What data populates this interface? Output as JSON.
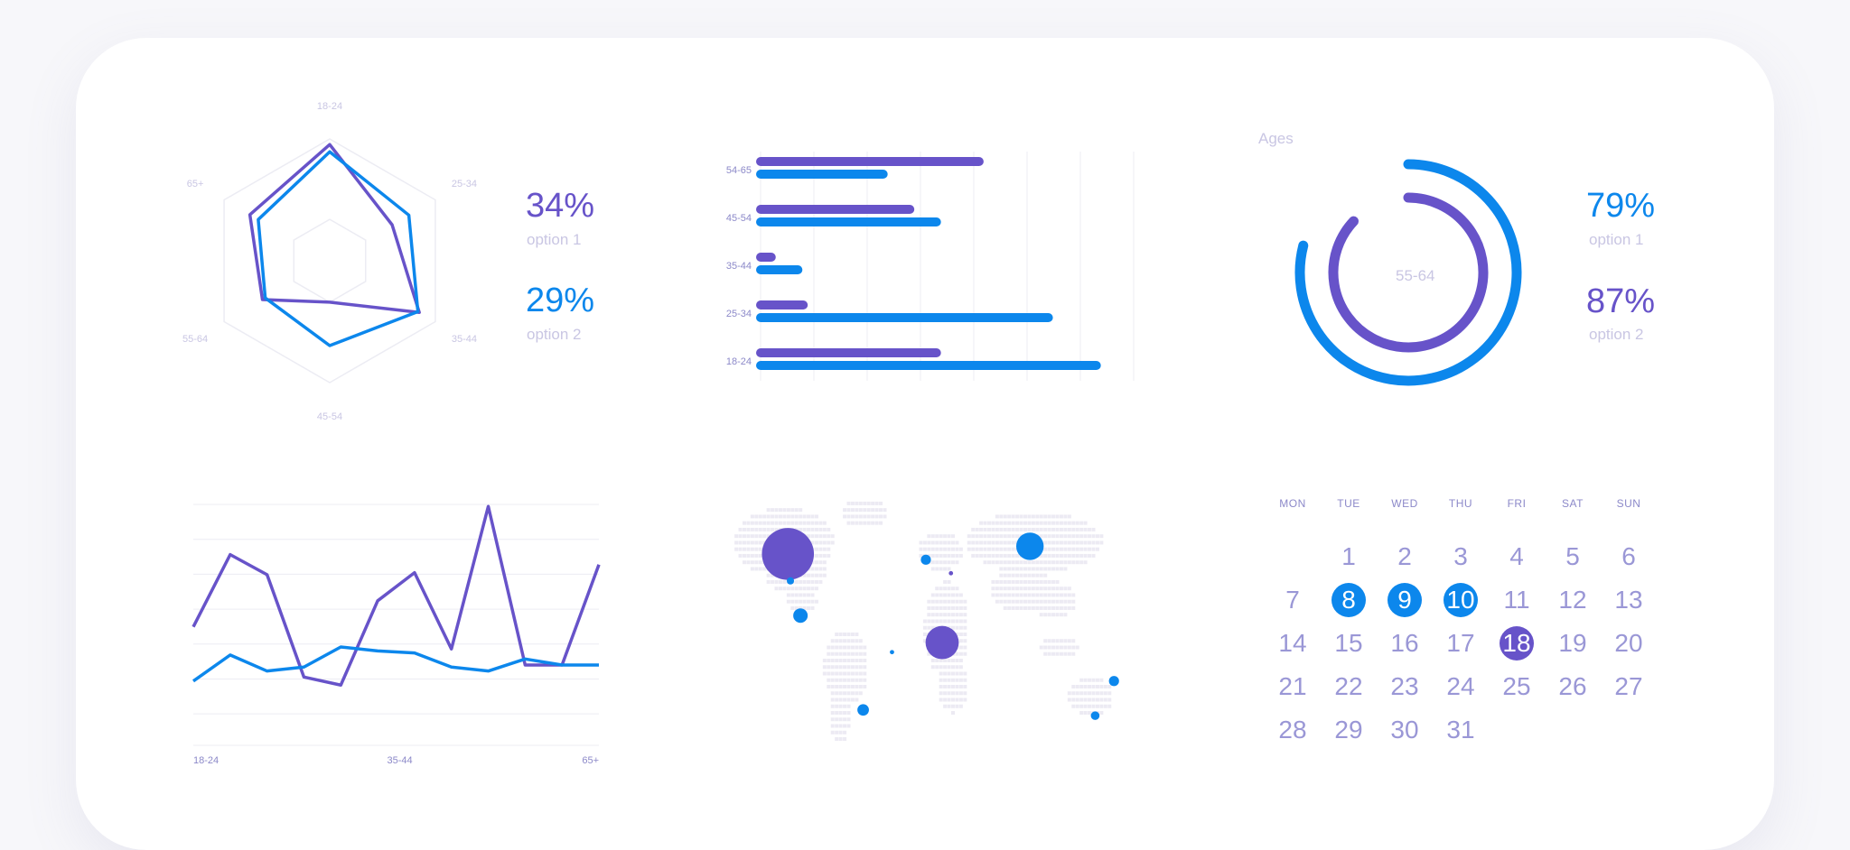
{
  "colors": {
    "purple": "#6753c9",
    "blue": "#0c87ec",
    "muted": "#c9c6e3",
    "label": "#8c89c9",
    "grid": "#ececf3"
  },
  "radar": {
    "axes": [
      "18-24",
      "25-34",
      "35-44",
      "45-54",
      "55-64",
      "65+"
    ],
    "scale_max": 1.0,
    "series": [
      {
        "color": "#6753c9",
        "values": [
          0.93,
          0.38,
          0.77,
          0.0,
          0.45,
          0.63
        ]
      },
      {
        "color": "#0c87ec",
        "values": [
          0.84,
          0.62,
          0.75,
          0.54,
          0.41,
          0.51
        ]
      }
    ]
  },
  "stats_left": [
    {
      "value": "34%",
      "label": "option 1",
      "color": "#6753c9"
    },
    {
      "value": "29%",
      "label": "option 2",
      "color": "#0c87ec"
    }
  ],
  "stats_right": [
    {
      "value": "79%",
      "label": "option 1",
      "color": "#0c87ec"
    },
    {
      "value": "87%",
      "label": "option 2",
      "color": "#6753c9"
    }
  ],
  "donut": {
    "title": "Ages",
    "center_label": "55-64"
  },
  "chart_data": [
    {
      "type": "radar",
      "categories": [
        "18-24",
        "25-34",
        "35-44",
        "45-54",
        "55-64",
        "65+"
      ],
      "series": [
        {
          "values": [
            0.93,
            0.38,
            0.77,
            0.0,
            0.45,
            0.63
          ]
        },
        {
          "values": [
            0.84,
            0.62,
            0.75,
            0.54,
            0.41,
            0.51
          ]
        }
      ]
    },
    {
      "type": "bar",
      "orientation": "horizontal",
      "categories": [
        "54-65",
        "45-54",
        "35-44",
        "25-34",
        "18-24"
      ],
      "xlim": [
        0,
        7
      ],
      "series": [
        {
          "values": [
            4.1,
            2.8,
            0.2,
            0.8,
            3.3
          ]
        },
        {
          "values": [
            2.3,
            3.3,
            0.7,
            5.4,
            6.3
          ]
        }
      ]
    },
    {
      "type": "pie",
      "style": "donut-arcs",
      "title": "Ages",
      "center_label": "55-64",
      "series": [
        {
          "name": "outer",
          "value": 79
        },
        {
          "name": "inner",
          "value": 87
        }
      ]
    },
    {
      "type": "line",
      "x": [
        0,
        1,
        2,
        3,
        4,
        5,
        6,
        7,
        8,
        9,
        10,
        11
      ],
      "tick_labels": [
        "18-24",
        "35-44",
        "65+"
      ],
      "tick_positions": [
        0,
        5.6,
        11
      ],
      "ylim": [
        0,
        6
      ],
      "series": [
        {
          "values": [
            2.95,
            4.75,
            4.25,
            1.7,
            1.5,
            3.6,
            4.3,
            2.4,
            5.95,
            2.0,
            2.0,
            4.5
          ]
        },
        {
          "values": [
            1.6,
            2.25,
            1.85,
            1.95,
            2.45,
            2.35,
            2.3,
            1.95,
            1.85,
            2.15,
            2.0,
            2.0
          ]
        }
      ]
    },
    {
      "type": "scatter",
      "description_free": true,
      "series": [
        {
          "values": [
            {
              "x": -105,
              "y": 48,
              "size": 3.6,
              "color": "#6753c9"
            },
            {
              "x": 18,
              "y": 2,
              "size": 2.3,
              "color": "#6753c9"
            },
            {
              "x": 88,
              "y": 52,
              "size": 1.9,
              "color": "#0c87ec"
            },
            {
              "x": -95,
              "y": 16,
              "size": 1.0,
              "color": "#0c87ec"
            },
            {
              "x": -45,
              "y": -33,
              "size": 0.8,
              "color": "#0c87ec"
            },
            {
              "x": 5,
              "y": 45,
              "size": 0.7,
              "color": "#0c87ec"
            },
            {
              "x": 155,
              "y": -18,
              "size": 0.7,
              "color": "#0c87ec"
            },
            {
              "x": 140,
              "y": -36,
              "size": 0.6,
              "color": "#0c87ec"
            },
            {
              "x": -103,
              "y": 34,
              "size": 0.5,
              "color": "#0c87ec"
            },
            {
              "x": 25,
              "y": 38,
              "size": 0.3,
              "color": "#6753c9"
            },
            {
              "x": -22,
              "y": -3,
              "size": 0.3,
              "color": "#0c87ec"
            }
          ]
        }
      ]
    }
  ],
  "calendar": {
    "weekdays": [
      "MON",
      "TUE",
      "WED",
      "THU",
      "FRI",
      "SAT",
      "SUN"
    ],
    "weeks": [
      [
        "",
        "1",
        "2",
        "3",
        "4",
        "5",
        "6"
      ],
      [
        "7",
        "8",
        "9",
        "10",
        "11",
        "12",
        "13"
      ],
      [
        "14",
        "15",
        "16",
        "17",
        "18",
        "19",
        "20"
      ],
      [
        "21",
        "22",
        "23",
        "24",
        "25",
        "26",
        "27"
      ],
      [
        "28",
        "29",
        "30",
        "31",
        "",
        "",
        ""
      ]
    ],
    "highlight_blue": [
      "8",
      "9",
      "10"
    ],
    "highlight_purple": [
      "18"
    ]
  }
}
